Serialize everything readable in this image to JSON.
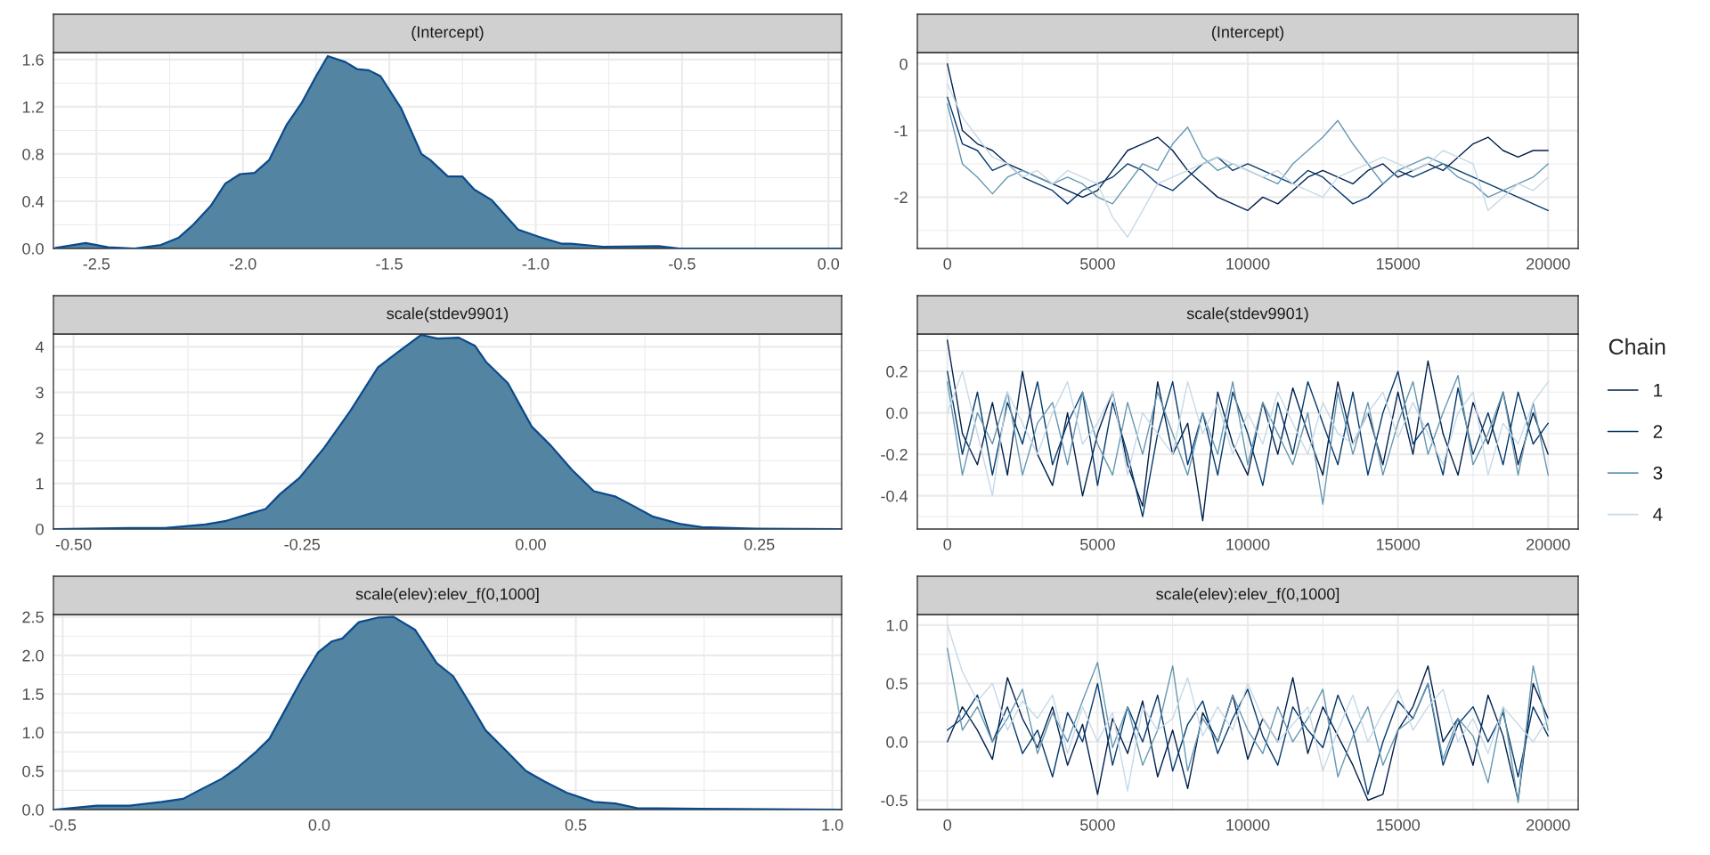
{
  "chart_data": [
    {
      "type": "area",
      "title": "(Intercept)",
      "grid": true,
      "xlim": [
        -2.647,
        0.045
      ],
      "ylim": [
        0,
        1.66
      ],
      "xticks": [
        -2.5,
        {
          "value": -2,
          "label": "-2.0"
        },
        -1.5,
        {
          "value": -1,
          "label": "-1.0"
        },
        -0.5,
        {
          "value": 0,
          "label": "0.0"
        }
      ],
      "yticks": [
        {
          "value": 0,
          "label": "0.0"
        },
        0.4,
        0.8,
        1.2,
        1.6
      ],
      "x": [
        -2.64,
        -2.537,
        -2.46,
        -2.37,
        -2.28,
        -2.22,
        -2.17,
        -2.11,
        -2.06,
        -2.01,
        -1.96,
        -1.91,
        -1.85,
        -1.8,
        -1.75,
        -1.71,
        -1.65,
        -1.61,
        -1.57,
        -1.53,
        -1.46,
        -1.39,
        -1.36,
        -1.3,
        -1.25,
        -1.21,
        -1.15,
        -1.06,
        -0.99,
        -0.91,
        -0.88,
        -0.77,
        -0.58,
        -0.51,
        0.04
      ],
      "series": [
        {
          "color": "#5385a3",
          "values": [
            0.005,
            0.046,
            0.01,
            0.0,
            0.03,
            0.09,
            0.2,
            0.36,
            0.55,
            0.63,
            0.64,
            0.75,
            1.05,
            1.23,
            1.46,
            1.63,
            1.58,
            1.52,
            1.51,
            1.46,
            1.19,
            0.8,
            0.75,
            0.61,
            0.61,
            0.5,
            0.41,
            0.16,
            0.1,
            0.04,
            0.04,
            0.015,
            0.02,
            0.0,
            0.0
          ]
        }
      ]
    },
    {
      "type": "line",
      "title": "(Intercept)",
      "grid": true,
      "xlim": [
        -1000,
        21000
      ],
      "ylim": [
        -2.77,
        0.17
      ],
      "xticks": [
        0,
        5000,
        10000,
        15000,
        20000
      ],
      "yticks": [
        -2,
        -1,
        0
      ],
      "x": [
        0,
        500,
        1000,
        1500,
        2000,
        2500,
        3000,
        3500,
        4000,
        4500,
        5000,
        5500,
        6000,
        6500,
        7000,
        7500,
        8000,
        8500,
        9000,
        9500,
        10000,
        10500,
        11000,
        11500,
        12000,
        12500,
        13000,
        13500,
        14000,
        14500,
        15000,
        15500,
        16000,
        16500,
        17000,
        17500,
        18000,
        18500,
        19000,
        19500,
        20000
      ],
      "series": [
        {
          "color": "#011f4b",
          "values": [
            0.0,
            -1.0,
            -1.2,
            -1.3,
            -1.5,
            -1.6,
            -1.7,
            -1.8,
            -1.9,
            -2.0,
            -1.9,
            -1.6,
            -1.3,
            -1.2,
            -1.1,
            -1.3,
            -1.6,
            -1.8,
            -2.0,
            -2.1,
            -2.2,
            -2.0,
            -2.1,
            -1.9,
            -1.7,
            -1.6,
            -1.7,
            -1.8,
            -1.6,
            -1.5,
            -1.7,
            -1.6,
            -1.5,
            -1.6,
            -1.4,
            -1.2,
            -1.1,
            -1.3,
            -1.4,
            -1.3,
            -1.3
          ]
        },
        {
          "color": "#03396c",
          "values": [
            -0.5,
            -1.2,
            -1.3,
            -1.6,
            -1.5,
            -1.7,
            -1.8,
            -1.9,
            -2.1,
            -1.9,
            -1.8,
            -1.7,
            -1.5,
            -1.6,
            -1.8,
            -1.9,
            -1.7,
            -1.5,
            -1.4,
            -1.6,
            -1.5,
            -1.6,
            -1.7,
            -1.8,
            -1.6,
            -1.7,
            -1.9,
            -2.1,
            -2.0,
            -1.8,
            -1.6,
            -1.7,
            -1.6,
            -1.5,
            -1.6,
            -1.7,
            -1.8,
            -1.9,
            -2.0,
            -2.1,
            -2.2
          ]
        },
        {
          "color": "#6497b1",
          "values": [
            -0.6,
            -1.5,
            -1.7,
            -1.95,
            -1.7,
            -1.6,
            -1.7,
            -1.8,
            -1.7,
            -1.8,
            -2.0,
            -2.1,
            -1.8,
            -1.5,
            -1.6,
            -1.2,
            -0.95,
            -1.4,
            -1.6,
            -1.5,
            -1.6,
            -1.7,
            -1.8,
            -1.5,
            -1.3,
            -1.1,
            -0.85,
            -1.2,
            -1.5,
            -1.8,
            -1.6,
            -1.5,
            -1.4,
            -1.5,
            -1.7,
            -1.8,
            -2.0,
            -1.9,
            -1.8,
            -1.7,
            -1.5
          ]
        },
        {
          "color": "#c6d9e8",
          "values": [
            -0.3,
            -0.8,
            -1.1,
            -1.4,
            -1.5,
            -1.7,
            -1.6,
            -1.8,
            -1.6,
            -1.7,
            -1.8,
            -2.3,
            -2.6,
            -2.2,
            -1.8,
            -1.7,
            -1.6,
            -1.5,
            -1.4,
            -1.5,
            -1.6,
            -1.7,
            -1.6,
            -1.8,
            -1.9,
            -2.0,
            -1.7,
            -1.6,
            -1.5,
            -1.4,
            -1.5,
            -1.6,
            -1.5,
            -1.3,
            -1.4,
            -1.5,
            -2.2,
            -2.0,
            -1.8,
            -1.9,
            -1.7
          ]
        }
      ]
    },
    {
      "type": "area",
      "title": "scale(stdev9901)",
      "grid": true,
      "xlim": [
        -0.522,
        0.34
      ],
      "ylim": [
        0,
        4.28
      ],
      "xticks": [
        {
          "value": -0.5,
          "label": "-0.50"
        },
        -0.25,
        {
          "value": 0,
          "label": "0.00"
        },
        0.25
      ],
      "yticks": [
        0,
        1,
        2,
        3,
        4
      ],
      "x": [
        -0.52,
        -0.44,
        -0.4,
        -0.356,
        -0.333,
        -0.31,
        -0.29,
        -0.274,
        -0.253,
        -0.226,
        -0.197,
        -0.167,
        -0.144,
        -0.12,
        -0.102,
        -0.079,
        -0.061,
        -0.049,
        -0.025,
        0.001,
        0.022,
        0.045,
        0.069,
        0.093,
        0.11,
        0.134,
        0.164,
        0.187,
        0.246,
        0.338
      ],
      "series": [
        {
          "color": "#5385a3",
          "values": [
            0.0,
            0.02,
            0.02,
            0.1,
            0.18,
            0.32,
            0.44,
            0.77,
            1.12,
            1.78,
            2.6,
            3.55,
            3.9,
            4.26,
            4.18,
            4.2,
            4.02,
            3.67,
            3.2,
            2.25,
            1.83,
            1.3,
            0.83,
            0.71,
            0.53,
            0.27,
            0.11,
            0.04,
            0.01,
            0.0
          ]
        }
      ]
    },
    {
      "type": "line",
      "title": "scale(stdev9901)",
      "grid": true,
      "legend": "right",
      "legend_title": "Chain",
      "xlim": [
        -1000,
        21000
      ],
      "ylim": [
        -0.56,
        0.38
      ],
      "xticks": [
        0,
        5000,
        10000,
        15000,
        20000
      ],
      "yticks": [
        -0.4,
        -0.2,
        {
          "value": 0,
          "label": "0.0"
        },
        0.2
      ],
      "x": [
        0,
        500,
        1000,
        1500,
        2000,
        2500,
        3000,
        3500,
        4000,
        4500,
        5000,
        5500,
        6000,
        6500,
        7000,
        7500,
        8000,
        8500,
        9000,
        9500,
        10000,
        10500,
        11000,
        11500,
        12000,
        12500,
        13000,
        13500,
        14000,
        14500,
        15000,
        15500,
        16000,
        16500,
        17000,
        17500,
        18000,
        18500,
        19000,
        19500,
        20000
      ],
      "series": [
        {
          "name": "1",
          "color": "#011f4b",
          "values": [
            0.35,
            -0.1,
            -0.25,
            0.05,
            -0.3,
            0.2,
            -0.2,
            -0.35,
            0.0,
            -0.4,
            -0.1,
            0.1,
            -0.25,
            -0.45,
            0.15,
            -0.2,
            -0.05,
            -0.52,
            0.1,
            -0.15,
            -0.3,
            0.05,
            -0.2,
            0.12,
            -0.1,
            -0.3,
            0.15,
            -0.15,
            0.0,
            -0.25,
            0.1,
            -0.2,
            0.25,
            -0.1,
            -0.3,
            0.05,
            -0.15,
            0.1,
            -0.25,
            0.0,
            -0.2
          ]
        },
        {
          "name": "2",
          "color": "#03396c",
          "values": [
            0.2,
            -0.2,
            0.1,
            -0.3,
            0.05,
            -0.15,
            0.15,
            -0.25,
            -0.05,
            0.1,
            -0.35,
            0.05,
            -0.2,
            -0.5,
            -0.1,
            0.15,
            -0.25,
            0.0,
            -0.3,
            0.1,
            -0.1,
            -0.35,
            0.05,
            -0.2,
            0.15,
            -0.05,
            -0.25,
            0.1,
            -0.3,
            0.0,
            0.2,
            -0.15,
            -0.05,
            -0.3,
            0.12,
            -0.2,
            0.0,
            -0.25,
            0.1,
            -0.15,
            -0.05
          ]
        },
        {
          "name": "3",
          "color": "#6497b1",
          "values": [
            0.15,
            -0.3,
            0.0,
            -0.15,
            0.1,
            -0.3,
            -0.05,
            0.05,
            -0.25,
            0.1,
            -0.15,
            -0.3,
            0.05,
            -0.2,
            0.1,
            -0.1,
            -0.3,
            0.0,
            -0.2,
            0.15,
            -0.25,
            0.05,
            -0.1,
            -0.25,
            0.0,
            -0.44,
            0.1,
            -0.2,
            0.05,
            -0.3,
            -0.05,
            0.15,
            -0.2,
            0.0,
            0.18,
            -0.25,
            -0.1,
            0.1,
            -0.3,
            0.05,
            -0.3
          ]
        },
        {
          "name": "4",
          "color": "#c6d9e8",
          "values": [
            0.0,
            0.2,
            -0.1,
            -0.4,
            0.1,
            -0.05,
            -0.2,
            0.0,
            0.15,
            -0.15,
            -0.05,
            0.1,
            -0.3,
            0.0,
            -0.1,
            -0.2,
            0.15,
            -0.1,
            0.05,
            -0.2,
            0.0,
            -0.15,
            0.1,
            -0.05,
            -0.2,
            0.05,
            -0.1,
            -0.15,
            0.0,
            0.1,
            -0.12,
            0.05,
            -0.1,
            -0.25,
            0.0,
            0.1,
            -0.3,
            -0.05,
            -0.15,
            0.05,
            0.15
          ]
        }
      ]
    },
    {
      "type": "area",
      "title": "scale(elev):elev_f(0,1000]",
      "grid": true,
      "xlim": [
        -0.518,
        1.018
      ],
      "ylim": [
        0,
        2.53
      ],
      "xticks": [
        -0.5,
        {
          "value": 0,
          "label": "0.0"
        },
        0.5,
        {
          "value": 1,
          "label": "1.0"
        }
      ],
      "yticks": [
        {
          "value": 0,
          "label": "0.0"
        },
        0.5,
        {
          "value": 1,
          "label": "1.0"
        },
        1.5,
        {
          "value": 2,
          "label": "2.0"
        },
        2.5
      ],
      "x": [
        -0.515,
        -0.434,
        -0.37,
        -0.307,
        -0.265,
        -0.234,
        -0.19,
        -0.16,
        -0.123,
        -0.097,
        -0.065,
        -0.034,
        -0.002,
        0.024,
        0.045,
        0.077,
        0.114,
        0.145,
        0.187,
        0.229,
        0.261,
        0.293,
        0.324,
        0.366,
        0.403,
        0.44,
        0.482,
        0.535,
        0.577,
        0.619,
        0.745,
        1.015
      ],
      "series": [
        {
          "color": "#5385a3",
          "values": [
            0.0,
            0.05,
            0.05,
            0.1,
            0.14,
            0.25,
            0.4,
            0.54,
            0.75,
            0.92,
            1.31,
            1.69,
            2.04,
            2.18,
            2.22,
            2.43,
            2.49,
            2.5,
            2.33,
            1.9,
            1.73,
            1.38,
            1.03,
            0.75,
            0.5,
            0.36,
            0.22,
            0.1,
            0.08,
            0.02,
            0.01,
            0.0
          ]
        }
      ]
    },
    {
      "type": "line",
      "title": "scale(elev):elev_f(0,1000]",
      "grid": true,
      "xlim": [
        -1000,
        21000
      ],
      "ylim": [
        -0.58,
        1.09
      ],
      "xticks": [
        0,
        5000,
        10000,
        15000,
        20000
      ],
      "yticks": [
        -0.5,
        {
          "value": 0,
          "label": "0.0"
        },
        0.5,
        {
          "value": 1,
          "label": "1.0"
        }
      ],
      "x": [
        0,
        500,
        1000,
        1500,
        2000,
        2500,
        3000,
        3500,
        4000,
        4500,
        5000,
        5500,
        6000,
        6500,
        7000,
        7500,
        8000,
        8500,
        9000,
        9500,
        10000,
        10500,
        11000,
        11500,
        12000,
        12500,
        13000,
        13500,
        14000,
        14500,
        15000,
        15500,
        16000,
        16500,
        17000,
        17500,
        18000,
        18500,
        19000,
        19500,
        20000
      ],
      "series": [
        {
          "color": "#011f4b",
          "values": [
            0.0,
            0.3,
            0.1,
            -0.15,
            0.55,
            0.2,
            -0.05,
            0.3,
            -0.2,
            0.15,
            -0.45,
            0.2,
            -0.1,
            0.35,
            -0.3,
            0.1,
            -0.4,
            0.25,
            0.0,
            0.4,
            -0.15,
            0.2,
            0.0,
            0.55,
            -0.1,
            0.3,
            0.05,
            -0.2,
            -0.5,
            -0.45,
            0.1,
            0.3,
            0.65,
            0.0,
            0.2,
            -0.2,
            0.4,
            0.05,
            -0.5,
            0.5,
            0.2
          ]
        },
        {
          "color": "#03396c",
          "values": [
            0.1,
            0.2,
            0.4,
            0.0,
            0.3,
            -0.1,
            0.1,
            -0.3,
            0.25,
            0.0,
            0.5,
            -0.2,
            0.3,
            0.0,
            0.4,
            -0.25,
            0.15,
            0.35,
            -0.1,
            0.2,
            0.45,
            0.05,
            -0.2,
            0.3,
            0.1,
            -0.05,
            0.4,
            0.1,
            -0.45,
            0.0,
            0.35,
            0.2,
            0.5,
            -0.2,
            0.15,
            0.3,
            0.0,
            0.25,
            -0.3,
            0.3,
            0.05
          ]
        },
        {
          "color": "#6497b1",
          "values": [
            0.8,
            0.1,
            0.3,
            0.0,
            0.2,
            0.45,
            -0.1,
            0.25,
            0.0,
            0.35,
            0.68,
            -0.05,
            0.3,
            -0.2,
            0.1,
            0.65,
            -0.25,
            0.2,
            0.0,
            0.4,
            0.1,
            -0.1,
            0.3,
            0.0,
            0.2,
            0.45,
            -0.3,
            0.05,
            0.3,
            -0.2,
            0.1,
            0.2,
            0.5,
            -0.15,
            0.2,
            0.05,
            -0.35,
            0.3,
            -0.52,
            0.65,
            0.1
          ]
        },
        {
          "color": "#c6d9e8",
          "values": [
            1.0,
            0.6,
            0.35,
            0.5,
            0.1,
            0.35,
            0.2,
            0.4,
            -0.1,
            0.3,
            0.0,
            0.25,
            -0.42,
            0.3,
            0.1,
            0.2,
            0.55,
            0.05,
            0.3,
            0.1,
            0.5,
            0.2,
            0.0,
            0.15,
            0.3,
            -0.25,
            0.1,
            0.4,
            0.0,
            0.25,
            0.45,
            0.1,
            0.3,
            0.45,
            0.0,
            0.2,
            -0.1,
            0.3,
            0.15,
            0.0,
            0.2
          ]
        }
      ]
    }
  ]
}
